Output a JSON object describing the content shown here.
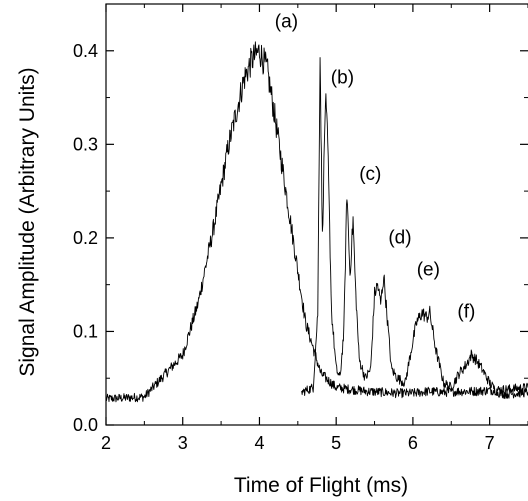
{
  "chart_data": {
    "type": "line",
    "title": "",
    "xlabel": "Time of Flight (ms)",
    "ylabel": "Signal Amplitude (Arbitrary Units)",
    "xlim": [
      2,
      7.5
    ],
    "ylim": [
      0.0,
      0.45
    ],
    "x_ticks": [
      "2",
      "3",
      "4",
      "5",
      "6",
      "7"
    ],
    "y_ticks": [
      "0.0",
      "0.1",
      "0.2",
      "0.3",
      "0.4"
    ],
    "grid": false,
    "series": [
      {
        "x": [
          2.0,
          2.5,
          3.0,
          3.2,
          3.4,
          3.6,
          3.8,
          3.9,
          4.0,
          4.1,
          4.2,
          4.4,
          4.6,
          4.8,
          5.0,
          5.2,
          5.4,
          5.6,
          5.8,
          6.0,
          6.2,
          6.4,
          6.6,
          6.8,
          7.0,
          7.2,
          7.5
        ],
        "y": [
          0.028,
          0.03,
          0.075,
          0.13,
          0.21,
          0.3,
          0.37,
          0.39,
          0.4,
          0.38,
          0.33,
          0.22,
          0.11,
          0.055,
          0.04,
          0.038,
          0.036,
          0.035,
          0.034,
          0.034,
          0.036,
          0.035,
          0.036,
          0.036,
          0.037,
          0.038,
          0.04
        ]
      },
      {
        "x": [
          4.55,
          4.7,
          4.76,
          4.79,
          4.82,
          4.86,
          4.89,
          4.94,
          5.0,
          5.05,
          5.1,
          5.14,
          5.18,
          5.22,
          5.25,
          5.3,
          5.38,
          5.45,
          5.5,
          5.54,
          5.58,
          5.62,
          5.66,
          5.72,
          5.8,
          5.9,
          6.0,
          6.05,
          6.12,
          6.18,
          6.22,
          6.3,
          6.4,
          6.5,
          6.6,
          6.7,
          6.76,
          6.82,
          6.9,
          7.0,
          7.1,
          7.2,
          7.5
        ],
        "y": [
          0.035,
          0.04,
          0.12,
          0.4,
          0.2,
          0.35,
          0.3,
          0.12,
          0.06,
          0.05,
          0.1,
          0.25,
          0.16,
          0.22,
          0.15,
          0.07,
          0.05,
          0.06,
          0.14,
          0.15,
          0.13,
          0.16,
          0.12,
          0.06,
          0.05,
          0.045,
          0.09,
          0.11,
          0.12,
          0.115,
          0.12,
          0.08,
          0.045,
          0.04,
          0.055,
          0.065,
          0.075,
          0.07,
          0.06,
          0.045,
          0.035,
          0.033,
          0.035
        ]
      }
    ],
    "annotations": [
      {
        "text": "(a)",
        "x": 4.2,
        "y": 0.425
      },
      {
        "text": "(b)",
        "x": 4.93,
        "y": 0.365
      },
      {
        "text": "(c)",
        "x": 5.3,
        "y": 0.262
      },
      {
        "text": "(d)",
        "x": 5.68,
        "y": 0.194
      },
      {
        "text": "(e)",
        "x": 6.05,
        "y": 0.16
      },
      {
        "text": "(f)",
        "x": 6.58,
        "y": 0.115
      }
    ]
  }
}
